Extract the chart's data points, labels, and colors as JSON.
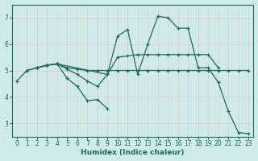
{
  "xlabel": "Humidex (Indice chaleur)",
  "bg_color": "#ceeaea",
  "line_color": "#1a6b60",
  "grid_color": "#b0d8d8",
  "xlim": [
    -0.5,
    23.5
  ],
  "ylim": [
    2.5,
    7.5
  ],
  "yticks": [
    3,
    4,
    5,
    6,
    7
  ],
  "xticks": [
    0,
    1,
    2,
    3,
    4,
    5,
    6,
    7,
    8,
    9,
    10,
    11,
    12,
    13,
    14,
    15,
    16,
    17,
    18,
    19,
    20,
    21,
    22,
    23
  ],
  "lines": [
    {
      "x": [
        0,
        1,
        2,
        3,
        4,
        9,
        10,
        11,
        12,
        13,
        14,
        15,
        16,
        17,
        18,
        19,
        20,
        21,
        22,
        23
      ],
      "y": [
        4.6,
        5.0,
        5.1,
        5.2,
        5.25,
        4.85,
        6.3,
        6.55,
        4.85,
        6.0,
        7.05,
        7.0,
        6.6,
        6.6,
        5.1,
        5.1,
        4.55,
        3.45,
        2.65,
        2.6
      ]
    },
    {
      "x": [
        1,
        2,
        3,
        4,
        5,
        6,
        7,
        8,
        9,
        10,
        11,
        12,
        13,
        14,
        15,
        16,
        17,
        18,
        19,
        20
      ],
      "y": [
        5.0,
        5.1,
        5.2,
        5.25,
        5.05,
        4.85,
        4.6,
        4.4,
        4.85,
        5.5,
        5.55,
        5.6,
        5.6,
        5.6,
        5.6,
        5.6,
        5.6,
        5.6,
        5.6,
        5.1
      ]
    },
    {
      "x": [
        2,
        3,
        4,
        5,
        6,
        7,
        8,
        9
      ],
      "y": [
        5.1,
        5.2,
        5.25,
        4.7,
        4.4,
        3.85,
        3.9,
        3.55
      ]
    },
    {
      "x": [
        2,
        3,
        4,
        5,
        6,
        7,
        8,
        9,
        10,
        11,
        12,
        13,
        14,
        15,
        16,
        17,
        18,
        19,
        20,
        21,
        22,
        23
      ],
      "y": [
        5.1,
        5.2,
        5.25,
        5.1,
        5.05,
        5.0,
        5.0,
        5.0,
        5.0,
        5.0,
        5.0,
        5.0,
        5.0,
        5.0,
        5.0,
        5.0,
        5.0,
        5.0,
        5.0,
        5.0,
        5.0,
        5.0
      ]
    }
  ]
}
